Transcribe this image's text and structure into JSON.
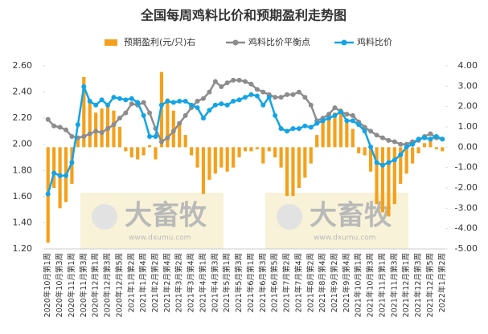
{
  "chart_data": {
    "type": "combo",
    "title": "全国每周鸡料比价和预期盈利走势图",
    "categories": [
      "2020年10月第1周",
      null,
      "2020年10月第3周",
      null,
      "2020年11月第1周",
      null,
      "2020年11月第3周",
      null,
      "2020年12月第1周",
      null,
      "2020年12月第3周",
      null,
      "2020年12月第5周",
      null,
      "2021年1月第2周",
      null,
      "2021年1月第4周",
      null,
      "2021年2月第2周",
      null,
      "2021年2月第4周",
      null,
      "2021年3月第2周",
      null,
      "2021年3月第4周",
      null,
      "2021年4月第1周",
      null,
      "2021年4月第3周",
      null,
      "2021年5月第1周",
      null,
      "2021年5月第3周",
      null,
      "2021年6月第1周",
      null,
      "2021年6月第3周",
      null,
      "2021年6月第5周",
      null,
      "2021年7月第2周",
      null,
      "2021年7月第4周",
      null,
      "2021年8月第2周",
      null,
      "2021年8月第4周",
      null,
      "2021年9月第2周",
      null,
      "2021年9月第4周",
      null,
      "2021年10月第1周",
      null,
      "2021年10月第3周",
      null,
      "2021年11月第1周",
      null,
      "2021年11月第3周",
      null,
      "2021年12月第1周",
      null,
      "2021年12月第3周",
      null,
      "2021年12月第5周",
      null,
      "2022年1月第2周"
    ],
    "series": [
      {
        "name": "预期盈利(元/只)右",
        "type": "bar",
        "axis": "y2",
        "color": "#f5a01a",
        "values": [
          -4.7,
          -2.0,
          -3.0,
          -2.7,
          -1.8,
          0.4,
          3.45,
          2.2,
          1.7,
          1.9,
          2.1,
          1.8,
          1.0,
          -0.2,
          -0.5,
          -0.6,
          -0.4,
          0.1,
          -0.6,
          3.7,
          2.4,
          1.8,
          1.2,
          0.6,
          -0.4,
          -1.0,
          -2.3,
          -1.6,
          -1.3,
          -1.0,
          -1.2,
          -1.0,
          -0.5,
          -0.2,
          -0.2,
          -0.1,
          -0.8,
          -0.2,
          -0.5,
          -1.0,
          -2.4,
          -2.4,
          -2.0,
          -1.5,
          -0.8,
          0.6,
          1.3,
          1.5,
          1.7,
          1.9,
          1.2,
          0.9,
          -0.3,
          -0.4,
          -1.2,
          -2.8,
          -3.2,
          -3.4,
          -2.8,
          -1.8,
          -1.3,
          -0.8,
          -0.3,
          0.2,
          0.4,
          -0.1,
          -0.2
        ]
      },
      {
        "name": "鸡料比价平衡点",
        "type": "line",
        "color": "#8c8c8c",
        "values": [
          2.19,
          2.14,
          2.13,
          2.11,
          2.06,
          2.05,
          2.06,
          2.08,
          2.1,
          2.09,
          2.12,
          2.15,
          2.2,
          2.24,
          2.31,
          2.3,
          2.32,
          2.24,
          2.12,
          2.02,
          2.05,
          2.1,
          2.16,
          2.22,
          2.28,
          2.33,
          2.35,
          2.4,
          2.48,
          2.44,
          2.47,
          2.49,
          2.49,
          2.48,
          2.46,
          2.42,
          2.4,
          2.38,
          2.36,
          2.36,
          2.38,
          2.38,
          2.4,
          2.36,
          2.3,
          2.18,
          2.2,
          2.23,
          2.28,
          2.25,
          2.23,
          2.22,
          2.17,
          2.13,
          2.1,
          2.07,
          2.05,
          2.03,
          2.02,
          2.0,
          2.0,
          2.02,
          2.03,
          2.06,
          2.08,
          2.05,
          2.04
        ]
      },
      {
        "name": "鸡料比价",
        "type": "line",
        "color": "#12a4e6",
        "values": [
          1.62,
          1.78,
          1.76,
          1.76,
          1.86,
          2.15,
          2.44,
          2.33,
          2.3,
          2.34,
          2.3,
          2.36,
          2.35,
          2.34,
          2.35,
          2.32,
          2.22,
          2.06,
          2.06,
          2.3,
          2.33,
          2.32,
          2.33,
          2.33,
          2.3,
          2.28,
          2.2,
          2.26,
          2.3,
          2.31,
          2.3,
          2.33,
          2.34,
          2.36,
          2.38,
          2.37,
          2.3,
          2.36,
          2.22,
          2.12,
          2.1,
          2.12,
          2.12,
          2.14,
          2.13,
          2.16,
          2.18,
          2.2,
          2.22,
          2.25,
          2.18,
          2.18,
          2.15,
          2.1,
          1.98,
          1.86,
          1.84,
          1.86,
          1.88,
          1.92,
          1.98,
          2.0,
          2.04,
          2.05,
          2.04,
          2.06,
          2.04
        ]
      }
    ],
    "ylim": [
      1.2,
      2.6
    ],
    "yticks": [
      {
        "value": 1.2,
        "label": "1.20"
      },
      {
        "value": 1.4,
        "label": "1.40"
      },
      {
        "value": 1.6,
        "label": "1.60"
      },
      {
        "value": 1.8,
        "label": "1.80"
      },
      {
        "value": 2.0,
        "label": "2.00"
      },
      {
        "value": 2.2,
        "label": "2.20"
      },
      {
        "value": 2.4,
        "label": "2.40"
      },
      {
        "value": 2.6,
        "label": "2.60"
      }
    ],
    "y2lim": [
      -5,
      4
    ],
    "y2ticks": [
      {
        "value": -5,
        "label": "-5.00"
      },
      {
        "value": -4,
        "label": "-4.00"
      },
      {
        "value": -3,
        "label": "-3.00"
      },
      {
        "value": -2,
        "label": "-2.00"
      },
      {
        "value": -1,
        "label": "-1.00"
      },
      {
        "value": 0,
        "label": "0.00"
      },
      {
        "value": 1,
        "label": "1.00"
      },
      {
        "value": 2,
        "label": "2.00"
      },
      {
        "value": 3,
        "label": "3.00"
      },
      {
        "value": 4,
        "label": "4.00"
      }
    ],
    "legend": "top",
    "watermark": {
      "text": "大畜牧",
      "url": "www.dxumu.com"
    }
  }
}
